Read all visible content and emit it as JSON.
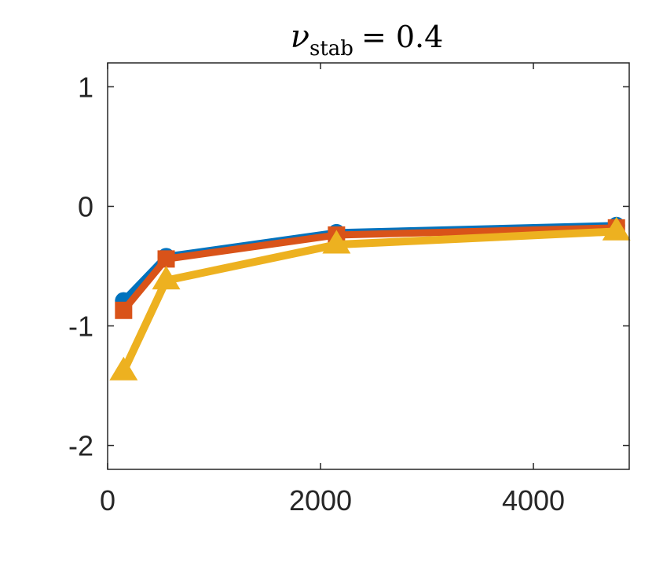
{
  "chart_data": {
    "type": "line",
    "title": {
      "symbol": "ν",
      "subscript": "stab",
      "rest": "= 0.4"
    },
    "xlabel": "",
    "ylabel": "",
    "xlim": [
      0,
      4900
    ],
    "ylim": [
      -2.2,
      1.2
    ],
    "xticks": [
      0,
      2000,
      4000
    ],
    "xtick_labels": [
      "0",
      "2000",
      "4000"
    ],
    "yticks": [
      1,
      0,
      -1,
      -2
    ],
    "ytick_labels": [
      "1",
      "0",
      "-1",
      "-2"
    ],
    "grid": false,
    "box": true,
    "x": [
      150,
      550,
      2150,
      4780
    ],
    "series": [
      {
        "color": "#0072BD",
        "marker": "circle",
        "values": [
          -0.79,
          -0.42,
          -0.22,
          -0.16
        ]
      },
      {
        "color": "#D95319",
        "marker": "square",
        "values": [
          -0.87,
          -0.44,
          -0.24,
          -0.18
        ]
      },
      {
        "color": "#EDB120",
        "marker": "triangle",
        "values": [
          -1.38,
          -0.62,
          -0.32,
          -0.21
        ]
      }
    ]
  }
}
